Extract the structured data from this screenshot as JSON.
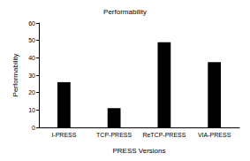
{
  "chart_data": {
    "type": "bar",
    "title": "Performability",
    "x_label": "PRESS Versions",
    "y_label": "Performability",
    "categories": [
      "I-PRESS",
      "TCP-PRESS",
      "ReTCP-PRESS",
      "VIA-PRESS"
    ],
    "values": [
      26,
      11,
      49,
      37.5
    ],
    "color": "#000000",
    "ylim": [
      0,
      60
    ],
    "yticks": [
      0,
      10,
      20,
      30,
      40,
      50,
      60
    ],
    "grid": false
  }
}
